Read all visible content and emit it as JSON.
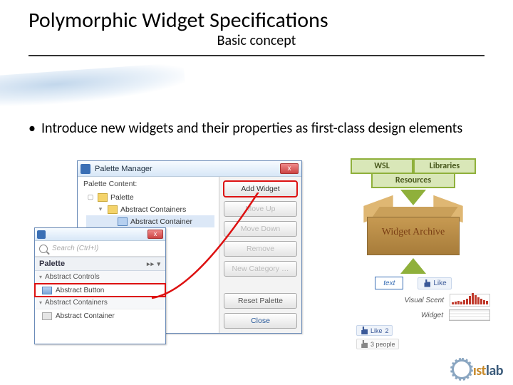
{
  "header": {
    "title": "Polymorphic Widget Specifications",
    "subtitle": "Basic concept"
  },
  "bullet": "Introduce new widgets and their properties as first-class  design elements",
  "palette_manager": {
    "title": "Palette Manager",
    "content_label": "Palette Content:",
    "tree": {
      "root": "Palette",
      "group": "Abstract Containers",
      "item": "Abstract Container"
    },
    "buttons": {
      "add_widget": "Add Widget",
      "move_up": "Move Up",
      "move_down": "Move Down",
      "remove": "Remove",
      "new_category": "New Category …",
      "reset": "Reset Palette",
      "close": "Close"
    }
  },
  "search_panel": {
    "placeholder": "Search (Ctrl+I)",
    "section": "Palette",
    "cat1": "Abstract Controls",
    "item_hl": "Abstract Button",
    "cat2": "Abstract Containers",
    "cat3": "Abstract Container"
  },
  "diagram": {
    "wsl": "WSL",
    "libraries": "Libraries",
    "resources": "Resources",
    "archive": "Widget Archive",
    "text_chip": "text",
    "like": "Like",
    "visual_scent": "Visual Scent",
    "widget": "Widget",
    "like_count": "2",
    "people": "3 people",
    "spark_values": [
      3,
      4,
      5,
      4,
      6,
      8,
      12,
      16,
      13,
      10,
      8,
      6,
      5
    ]
  },
  "logo": {
    "text_prefix": "ıst",
    "text_suffix": "lab"
  },
  "colors": {
    "highlight": "#d11",
    "chip_bg": "#d9e7b8",
    "chip_border": "#8fb03b"
  }
}
